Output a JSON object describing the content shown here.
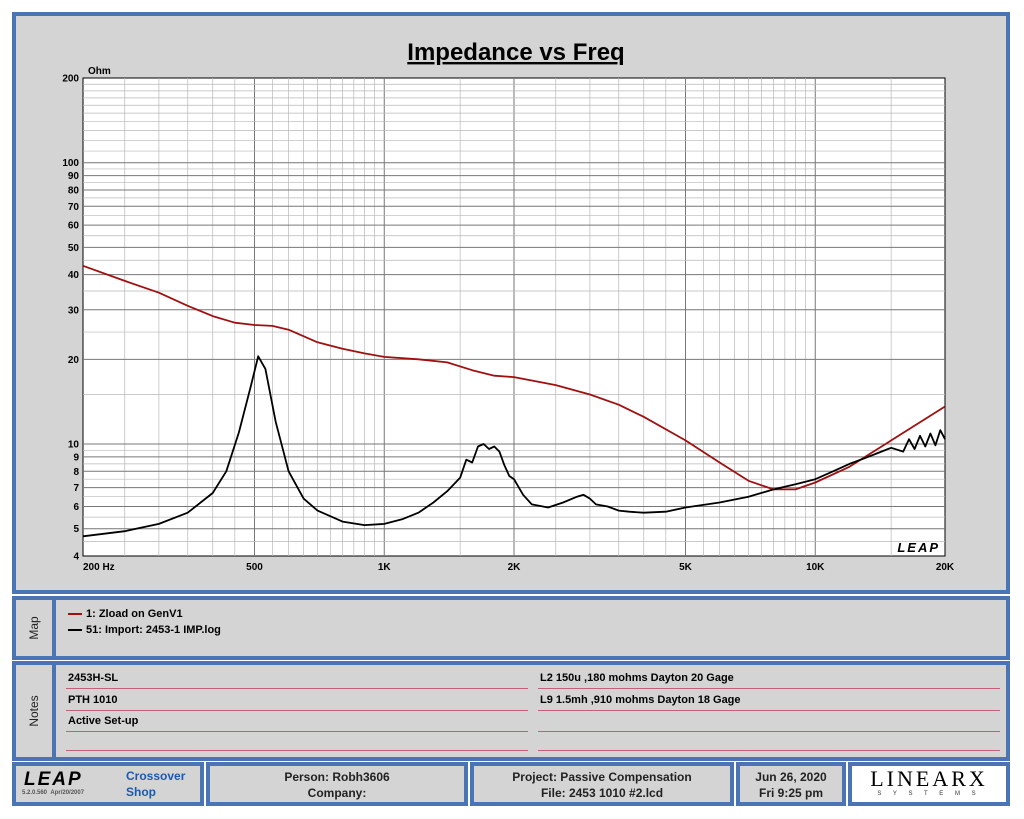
{
  "chart_data": {
    "type": "line",
    "title": "Impedance vs Freq",
    "ylabel": "Ohm",
    "xlabel": "",
    "x_scale": "log",
    "y_scale": "log",
    "xlim": [
      200,
      20000
    ],
    "ylim": [
      4,
      200
    ],
    "x_ticks": [
      200,
      500,
      1000,
      2000,
      5000,
      10000,
      20000
    ],
    "x_tick_labels": [
      "200 Hz",
      "500",
      "1K",
      "2K",
      "5K",
      "10K",
      "20K"
    ],
    "y_ticks": [
      4,
      5,
      6,
      7,
      8,
      9,
      10,
      20,
      30,
      40,
      50,
      60,
      70,
      80,
      90,
      100,
      200
    ],
    "y_tick_labels": [
      "4",
      "5",
      "6",
      "7",
      "8",
      "9",
      "10",
      "20",
      "30",
      "40",
      "50",
      "60",
      "70",
      "80",
      "90",
      "100",
      "200"
    ],
    "grid": true,
    "watermark": "LEAP",
    "series": [
      {
        "name": "1: Zload on GenV1",
        "color": "#a01010",
        "points": [
          [
            200,
            43
          ],
          [
            250,
            38
          ],
          [
            300,
            34.5
          ],
          [
            350,
            31
          ],
          [
            400,
            28.5
          ],
          [
            450,
            27
          ],
          [
            500,
            26.5
          ],
          [
            550,
            26.3
          ],
          [
            600,
            25.5
          ],
          [
            700,
            23
          ],
          [
            800,
            21.8
          ],
          [
            900,
            21
          ],
          [
            1000,
            20.4
          ],
          [
            1200,
            20
          ],
          [
            1400,
            19.5
          ],
          [
            1600,
            18.3
          ],
          [
            1800,
            17.5
          ],
          [
            2000,
            17.3
          ],
          [
            2500,
            16.2
          ],
          [
            3000,
            15
          ],
          [
            3500,
            13.8
          ],
          [
            4000,
            12.5
          ],
          [
            5000,
            10.3
          ],
          [
            6000,
            8.6
          ],
          [
            7000,
            7.4
          ],
          [
            8000,
            6.9
          ],
          [
            9000,
            6.9
          ],
          [
            10000,
            7.3
          ],
          [
            12000,
            8.3
          ],
          [
            15000,
            10.3
          ],
          [
            20000,
            13.6
          ]
        ]
      },
      {
        "name": "51: Import: 2453-1 IMP.log",
        "color": "#000000",
        "points": [
          [
            200,
            4.7
          ],
          [
            250,
            4.9
          ],
          [
            300,
            5.2
          ],
          [
            350,
            5.7
          ],
          [
            400,
            6.7
          ],
          [
            430,
            8
          ],
          [
            460,
            11
          ],
          [
            490,
            16
          ],
          [
            510,
            20.5
          ],
          [
            530,
            18.5
          ],
          [
            560,
            12
          ],
          [
            600,
            8
          ],
          [
            650,
            6.4
          ],
          [
            700,
            5.8
          ],
          [
            800,
            5.3
          ],
          [
            900,
            5.15
          ],
          [
            1000,
            5.2
          ],
          [
            1100,
            5.4
          ],
          [
            1200,
            5.7
          ],
          [
            1300,
            6.2
          ],
          [
            1400,
            6.8
          ],
          [
            1500,
            7.6
          ],
          [
            1550,
            8.8
          ],
          [
            1600,
            8.6
          ],
          [
            1650,
            9.8
          ],
          [
            1700,
            10
          ],
          [
            1750,
            9.6
          ],
          [
            1800,
            9.8
          ],
          [
            1850,
            9.4
          ],
          [
            1900,
            8.4
          ],
          [
            1950,
            7.7
          ],
          [
            2000,
            7.5
          ],
          [
            2100,
            6.6
          ],
          [
            2200,
            6.1
          ],
          [
            2400,
            5.95
          ],
          [
            2600,
            6.2
          ],
          [
            2800,
            6.5
          ],
          [
            2900,
            6.6
          ],
          [
            3000,
            6.4
          ],
          [
            3100,
            6.1
          ],
          [
            3300,
            6
          ],
          [
            3500,
            5.8
          ],
          [
            3700,
            5.75
          ],
          [
            4000,
            5.7
          ],
          [
            4500,
            5.75
          ],
          [
            5000,
            5.95
          ],
          [
            6000,
            6.2
          ],
          [
            7000,
            6.5
          ],
          [
            8000,
            6.9
          ],
          [
            9000,
            7.2
          ],
          [
            10000,
            7.5
          ],
          [
            11000,
            8
          ],
          [
            12000,
            8.5
          ],
          [
            13000,
            8.9
          ],
          [
            14000,
            9.3
          ],
          [
            15000,
            9.7
          ],
          [
            16000,
            9.4
          ],
          [
            16500,
            10.4
          ],
          [
            17000,
            9.6
          ],
          [
            17500,
            10.7
          ],
          [
            18000,
            9.8
          ],
          [
            18500,
            10.9
          ],
          [
            19000,
            9.9
          ],
          [
            19500,
            11.2
          ],
          [
            20000,
            10.4
          ]
        ]
      }
    ]
  },
  "map": {
    "tab_label": "Map"
  },
  "notes": {
    "tab_label": "Notes",
    "left": [
      "2453H-SL",
      "PTH 1010",
      "Active Set-up",
      ""
    ],
    "right": [
      "L2 150u ,180 mohms  Dayton 20 Gage",
      "L9 1.5mh ,910 mohms  Dayton 18 Gage",
      "",
      ""
    ]
  },
  "footer": {
    "logo": "LEAP",
    "version": "5.2.0.560",
    "version_date": "Apr/20/2007",
    "product_line1": "Crossover",
    "product_line2": "Shop",
    "person": "Person: Robh3606",
    "company": "Company:",
    "project": "Project: Passive Compensation",
    "file": "File: 2453 1010 #2.lcd",
    "date": "Jun 26, 2020",
    "time": "Fri  9:25 pm",
    "brand": "LINEARX",
    "brand_sub": "S Y S T E M S",
    "accent_color": "#1a5ab0"
  }
}
